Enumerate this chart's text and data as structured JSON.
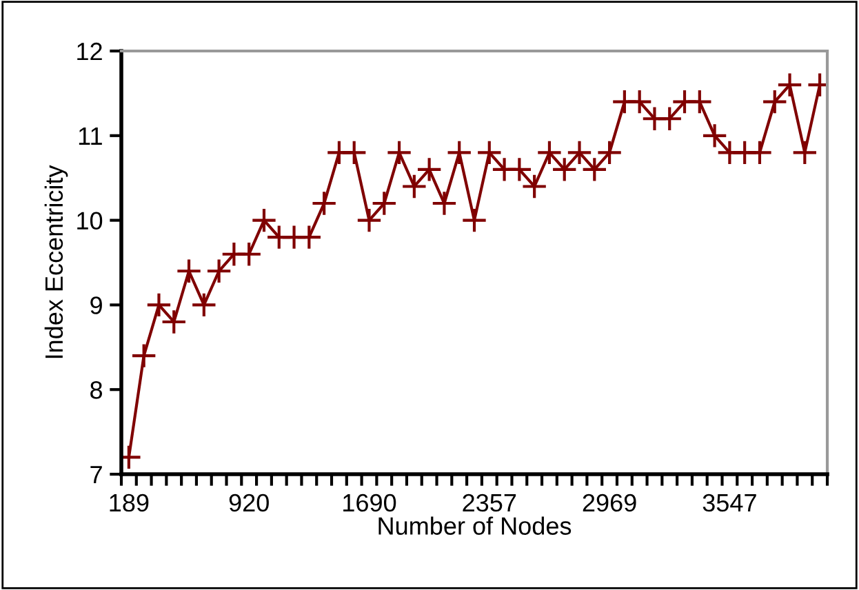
{
  "chart_data": {
    "type": "line",
    "xlabel": "Number of Nodes",
    "ylabel": "Index Eccentricity",
    "categories": [
      "189",
      null,
      null,
      null,
      null,
      null,
      null,
      null,
      "920",
      null,
      null,
      null,
      null,
      null,
      null,
      null,
      "1690",
      null,
      null,
      null,
      null,
      null,
      null,
      null,
      "2357",
      null,
      null,
      null,
      null,
      null,
      null,
      null,
      "2969",
      null,
      null,
      null,
      null,
      null,
      null,
      null,
      "3547",
      null,
      null,
      null,
      null,
      null,
      null
    ],
    "series": [
      {
        "color": "#800000",
        "values": [
          7.2,
          8.4,
          9.0,
          8.8,
          9.4,
          9.0,
          9.4,
          9.6,
          9.6,
          10.0,
          9.8,
          9.8,
          9.8,
          10.2,
          10.8,
          10.8,
          10.0,
          10.2,
          10.8,
          10.4,
          10.6,
          10.2,
          10.8,
          10.0,
          10.8,
          10.6,
          10.6,
          10.4,
          10.8,
          10.6,
          10.8,
          10.6,
          10.8,
          11.4,
          11.4,
          11.2,
          11.2,
          11.4,
          11.4,
          11.0,
          10.8,
          10.8,
          10.8,
          11.4,
          11.6,
          10.8,
          11.6
        ]
      }
    ],
    "ylim": [
      7,
      12
    ],
    "yticks": [
      7,
      8,
      9,
      10,
      11,
      12
    ],
    "grid": false,
    "marker": "cross",
    "line_style": "solid"
  }
}
